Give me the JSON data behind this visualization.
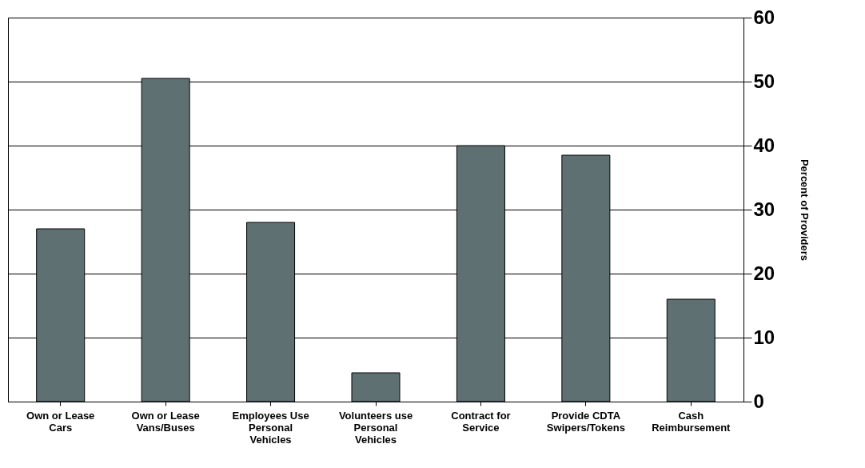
{
  "chart_data": {
    "type": "bar",
    "ylabel": "Percent of Providers",
    "categories": [
      "Own or Lease Cars",
      "Own or Lease Vans/Buses",
      "Employees Use Personal Vehicles",
      "Volunteers use Personal Vehicles",
      "Contract for Service",
      "Provide CDTA Swipers/Tokens",
      "Cash Reimbursement"
    ],
    "values": [
      27,
      50.5,
      28,
      4.5,
      40,
      38.5,
      16
    ],
    "color": "#5f7073",
    "ylim": [
      0,
      60
    ],
    "yticks": [
      0,
      10,
      20,
      30,
      40,
      50,
      60
    ],
    "grid": "y"
  }
}
